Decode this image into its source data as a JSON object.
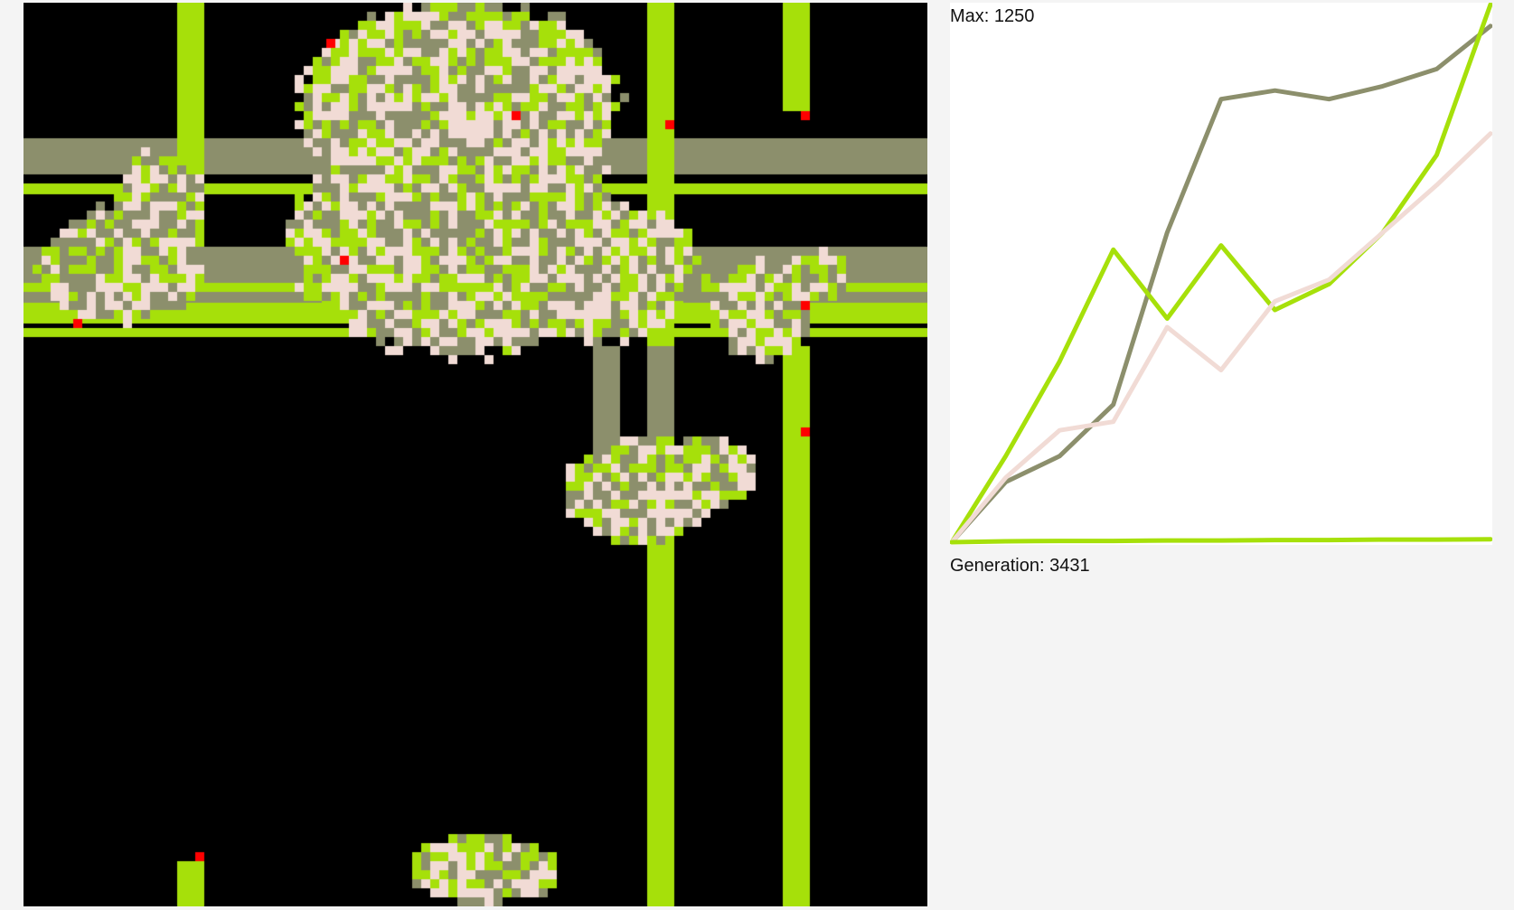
{
  "simulation": {
    "grid_cells": 100,
    "colors": {
      "background": "#000000",
      "lime": "#a6e00a",
      "olive": "#8c8f6c",
      "pink": "#f1dbd5",
      "red": "#ff0000"
    }
  },
  "stats": {
    "max_label": "Max: 1250",
    "generation_label": "Generation: 3431"
  },
  "chart_data": {
    "type": "line",
    "x": [
      0,
      343,
      686,
      1029,
      1372,
      1715,
      2058,
      2402,
      2745,
      3088,
      3431
    ],
    "ylim": [
      0,
      1250
    ],
    "xlim": [
      0,
      3431
    ],
    "grid": false,
    "series": [
      {
        "color": "#8c8f6c",
        "values": [
          0,
          140,
          200,
          320,
          720,
          1030,
          1050,
          1030,
          1060,
          1100,
          1200
        ]
      },
      {
        "color": "#a6e00a",
        "values": [
          0,
          200,
          420,
          680,
          520,
          690,
          540,
          600,
          720,
          900,
          1250
        ]
      },
      {
        "color": "#f1dbd5",
        "values": [
          0,
          150,
          260,
          280,
          500,
          400,
          560,
          610,
          720,
          830,
          950
        ]
      },
      {
        "color": "#a6e00a",
        "values": [
          0,
          2,
          3,
          3,
          4,
          4,
          5,
          5,
          6,
          6,
          7
        ]
      }
    ]
  }
}
